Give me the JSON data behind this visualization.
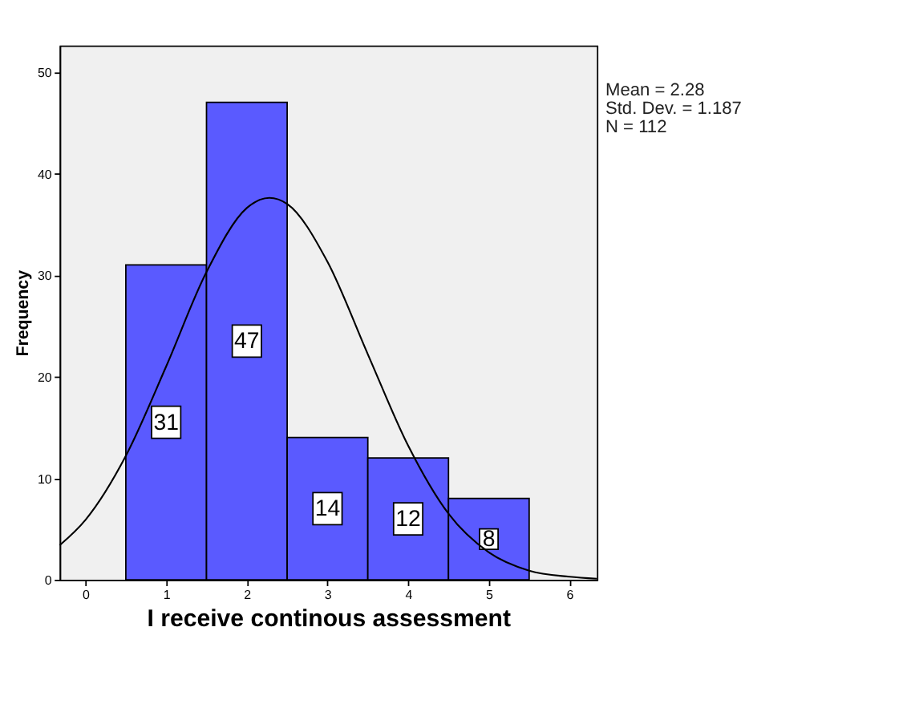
{
  "chart_data": {
    "type": "histogram",
    "xlabel": "I receive continous assessment",
    "ylabel": "Frequency",
    "bins": [
      0.5,
      1.5,
      2.5,
      3.5,
      4.5,
      5.5
    ],
    "values": [
      31,
      47,
      14,
      12,
      8
    ],
    "color": "#5a5aff",
    "value_labels": [
      "31",
      "47",
      "14",
      "12",
      "8"
    ],
    "series": [
      {
        "type": "line",
        "color": "#000000",
        "x": [
          -0.32,
          0,
          0.5,
          1,
          1.5,
          2,
          2.28,
          2.5,
          3,
          3.5,
          4,
          4.5,
          5,
          5.5,
          6,
          6.34
        ],
        "values": [
          3.4,
          5.9,
          12.2,
          21.0,
          30.3,
          36.6,
          37.6,
          37.0,
          31.3,
          22.2,
          13.2,
          6.5,
          2.7,
          0.9,
          0.3,
          0.1
        ]
      }
    ],
    "xlim": [
      -0.32,
      6.34
    ],
    "xticks": [
      0,
      1,
      2,
      3,
      4,
      5,
      6
    ],
    "ylim": [
      0,
      52.6
    ],
    "yticks": [
      0,
      10,
      20,
      30,
      40,
      50
    ],
    "grid": false,
    "annotations": [
      "Mean = 2.28",
      "Std. Dev. = 1.187",
      "N = 112"
    ]
  }
}
